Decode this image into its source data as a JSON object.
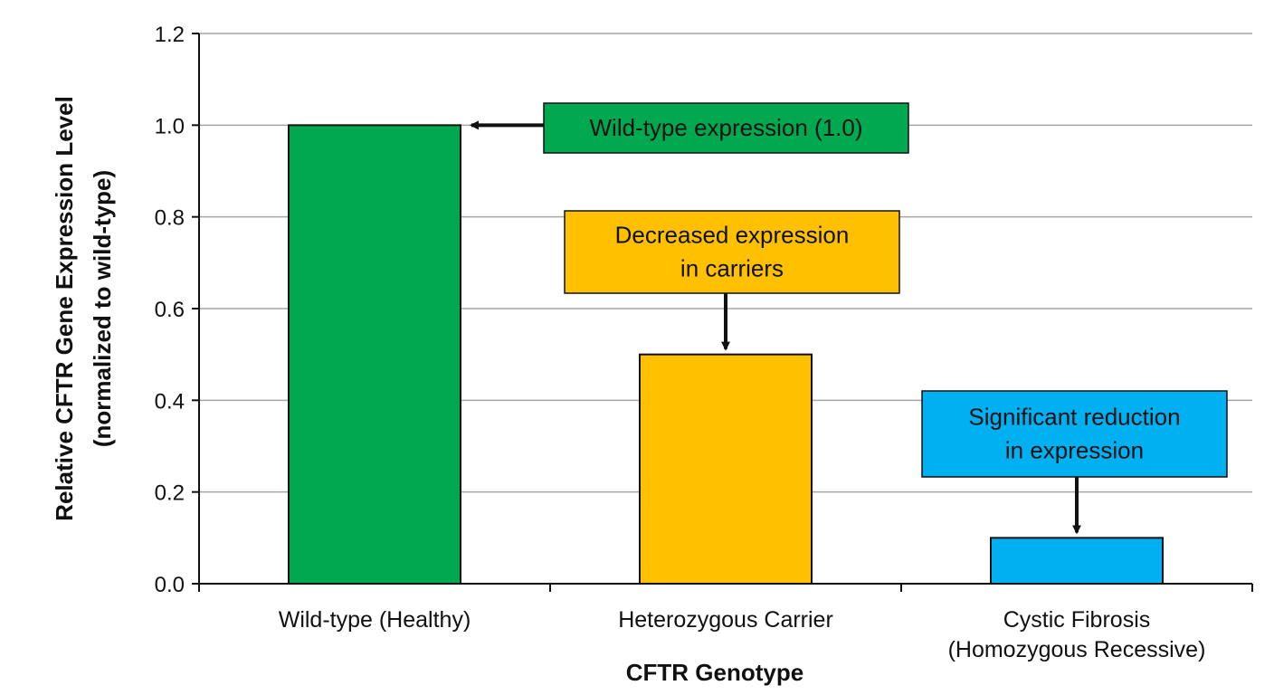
{
  "chart_data": {
    "type": "bar",
    "xlabel": "CFTR Genotype",
    "ylabel_lines": [
      "Relative CFTR Gene Expression Level",
      "(normalized to wild-type)"
    ],
    "ylim": [
      0,
      1.2
    ],
    "yticks": [
      "0.0",
      "0.2",
      "0.4",
      "0.6",
      "0.8",
      "1.0",
      "1.2"
    ],
    "grid": true,
    "categories": [
      {
        "lines": [
          "Wild-type (Healthy)"
        ]
      },
      {
        "lines": [
          "Heterozygous Carrier"
        ]
      },
      {
        "lines": [
          "Cystic Fibrosis",
          "(Homozygous Recessive)"
        ]
      }
    ],
    "values": [
      1.0,
      0.5,
      0.1
    ],
    "colors": [
      "#00a84f",
      "#ffc000",
      "#00b0f0"
    ],
    "annotations": [
      {
        "target": 0,
        "lines": [
          "Wild-type expression (1.0)"
        ],
        "color": "#00a84f",
        "arrow": "left"
      },
      {
        "target": 1,
        "lines": [
          "Decreased expression",
          "in carriers"
        ],
        "color": "#ffc000",
        "arrow": "down"
      },
      {
        "target": 2,
        "lines": [
          "Significant reduction",
          "in expression"
        ],
        "color": "#00b0f0",
        "arrow": "down"
      }
    ]
  }
}
